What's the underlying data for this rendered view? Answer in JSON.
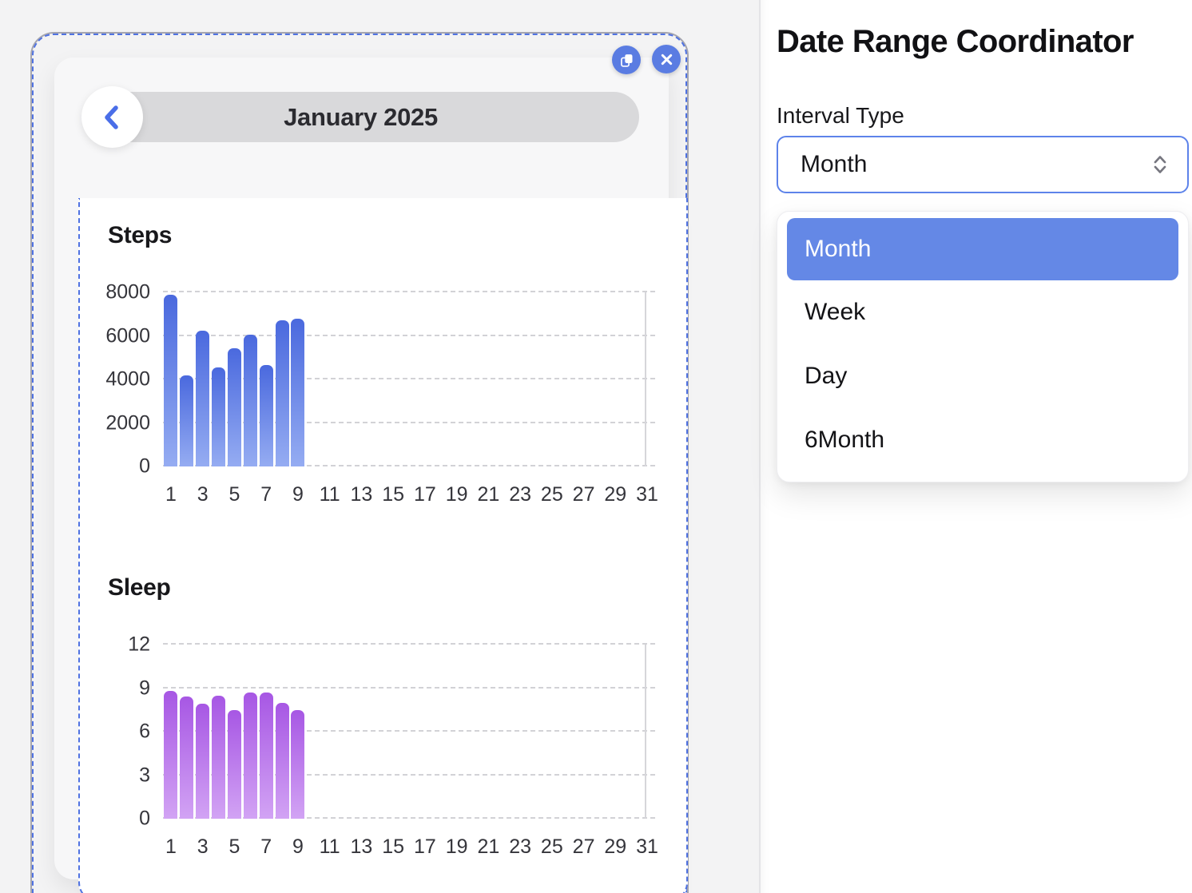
{
  "preview": {
    "header": {
      "title": "January 2025",
      "back_icon": "chevron-left"
    },
    "toolbar": {
      "copy_icon": "copy-duplicate",
      "close_icon": "x-close"
    },
    "selection_color": "#4f72e2",
    "button_color": "#5a7ce2"
  },
  "panel": {
    "title": "Date Range Coordinator",
    "interval_label": "Interval Type",
    "select": {
      "value": "Month",
      "stepper_icon": "chevrons-up-down",
      "border_color": "#5d83ea"
    },
    "options": [
      {
        "label": "Month",
        "selected": true
      },
      {
        "label": "Week",
        "selected": false
      },
      {
        "label": "Day",
        "selected": false
      },
      {
        "label": "6Month",
        "selected": false
      }
    ],
    "highlight_color": "#6488e6"
  },
  "chart_data": [
    {
      "type": "bar",
      "title": "Steps",
      "x": [
        1,
        2,
        3,
        4,
        5,
        6,
        7,
        8,
        9
      ],
      "values": [
        7900,
        4200,
        6250,
        4550,
        5450,
        6050,
        4650,
        6700,
        6800
      ],
      "x_ticks": [
        1,
        3,
        5,
        7,
        9,
        11,
        13,
        15,
        17,
        19,
        21,
        23,
        25,
        27,
        29,
        31
      ],
      "xlim": [
        0.5,
        31.5
      ],
      "y_ticks": [
        0,
        2000,
        4000,
        6000,
        8000
      ],
      "ylim": [
        0,
        8000
      ],
      "grid": "dashed-horizontal",
      "legend": "none",
      "bar_color_top": "#4a69de",
      "bar_color_bottom": "#95acf2"
    },
    {
      "type": "bar",
      "title": "Sleep",
      "x": [
        1,
        2,
        3,
        4,
        5,
        6,
        7,
        8,
        9
      ],
      "values": [
        8.8,
        8.4,
        7.9,
        8.5,
        7.5,
        8.7,
        8.7,
        8.0,
        7.5
      ],
      "x_ticks": [
        1,
        3,
        5,
        7,
        9,
        11,
        13,
        15,
        17,
        19,
        21,
        23,
        25,
        27,
        29,
        31
      ],
      "xlim": [
        0.5,
        31.5
      ],
      "y_ticks": [
        0,
        3,
        6,
        9,
        12
      ],
      "ylim": [
        0,
        12
      ],
      "grid": "dashed-horizontal",
      "legend": "none",
      "bar_color_top": "#a757e4",
      "bar_color_bottom": "#d2a3f4"
    }
  ]
}
